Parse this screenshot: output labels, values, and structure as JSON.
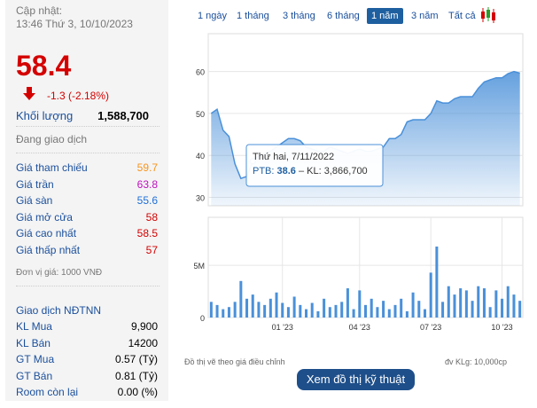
{
  "header": {
    "updated_label": "Cập nhật:",
    "updated_time": "13:46 Thứ 3, 10/10/2023"
  },
  "price": {
    "value": "58.4",
    "change": "-1.3 (-2.18%)"
  },
  "volume": {
    "label": "Khối lượng",
    "value": "1,588,700"
  },
  "status": "Đang giao dịch",
  "stats": [
    {
      "label": "Giá tham chiếu",
      "value": "59.7",
      "color": "#f7941d"
    },
    {
      "label": "Giá trần",
      "value": "63.8",
      "color": "#c010c0"
    },
    {
      "label": "Giá sàn",
      "value": "55.6",
      "color": "#1e6fd9"
    },
    {
      "label": "Giá mở cửa",
      "value": "58",
      "color": "#d40000"
    },
    {
      "label": "Giá cao nhất",
      "value": "58.5",
      "color": "#d40000"
    },
    {
      "label": "Giá thấp nhất",
      "value": "57",
      "color": "#d40000"
    }
  ],
  "unit_note": "Đơn vị giá: 1000 VNĐ",
  "foreign": {
    "title": "Giao dịch NĐTNN",
    "rows": [
      {
        "label": "KL Mua",
        "value": "9,900"
      },
      {
        "label": "KL Bán",
        "value": "14200"
      },
      {
        "label": "GT Mua",
        "value": "0.57 (Tỷ)"
      },
      {
        "label": "GT Bán",
        "value": "0.81 (Tỷ)"
      },
      {
        "label": "Room còn lại",
        "value": "0.00 (%)"
      }
    ]
  },
  "range_buttons": [
    "1 ngày",
    "1 tháng",
    "3 tháng",
    "6 tháng",
    "1 năm",
    "3 năm",
    "Tất cả"
  ],
  "active_range": 4,
  "tooltip": {
    "date": "Thứ hai, 7/11/2022",
    "symbol": "PTB:",
    "value": "38.6",
    "volume": "– KL: 3,866,700"
  },
  "chart_data": [
    {
      "type": "area",
      "color": "#4a90d9",
      "ylim": [
        28,
        69
      ],
      "yticks": [
        30,
        40,
        50,
        60
      ],
      "grid": true,
      "values": [
        50,
        51,
        46,
        44.5,
        38,
        34.5,
        35,
        38.6,
        40,
        40.5,
        41,
        42,
        43,
        44,
        44,
        43.5,
        42,
        41.5,
        41,
        41,
        42,
        41.5,
        41,
        40.5,
        41,
        41.5,
        41,
        41,
        41.5,
        42,
        44,
        44,
        45,
        48,
        48.5,
        48.5,
        48.5,
        50,
        53,
        52.5,
        52.5,
        53.5,
        54,
        54,
        54,
        56,
        57.5,
        58,
        58.5,
        58.5,
        59.5,
        60,
        59.6
      ]
    },
    {
      "type": "bar",
      "color": "#4a90d9",
      "ylim": [
        0,
        9600000
      ],
      "yticks": [
        0,
        {
          "value": 5000000,
          "label": "5M"
        }
      ],
      "grid": true,
      "categories": [
        null,
        null,
        null,
        null,
        null,
        null,
        null,
        null,
        null,
        null,
        null,
        null,
        "01 '23",
        null,
        null,
        null,
        null,
        null,
        null,
        null,
        null,
        null,
        null,
        null,
        null,
        "04 '23",
        null,
        null,
        null,
        null,
        null,
        null,
        null,
        null,
        null,
        null,
        null,
        "07 '23",
        null,
        null,
        null,
        null,
        null,
        null,
        null,
        null,
        null,
        null,
        null,
        "10 '23",
        null,
        null,
        null
      ],
      "values": [
        1500000,
        1200000,
        800000,
        1000000,
        1500000,
        3500000,
        1800000,
        2200000,
        1500000,
        1200000,
        1800000,
        2400000,
        1400000,
        1000000,
        2000000,
        1200000,
        800000,
        1400000,
        600000,
        1800000,
        1000000,
        1200000,
        1500000,
        2800000,
        800000,
        2600000,
        1200000,
        1800000,
        1000000,
        1600000,
        800000,
        1200000,
        1800000,
        600000,
        2400000,
        1600000,
        800000,
        4300000,
        6800000,
        1500000,
        3000000,
        2200000,
        2800000,
        2600000,
        1600000,
        3000000,
        2800000,
        1000000,
        2600000,
        1800000,
        3000000,
        2200000,
        1600000
      ]
    }
  ],
  "footnote_left": "Đồ thị vẽ theo giá điều chỉnh",
  "footnote_right": "đv KLg: 10,000cp",
  "cta": "Xem đồ thị kỹ thuật"
}
